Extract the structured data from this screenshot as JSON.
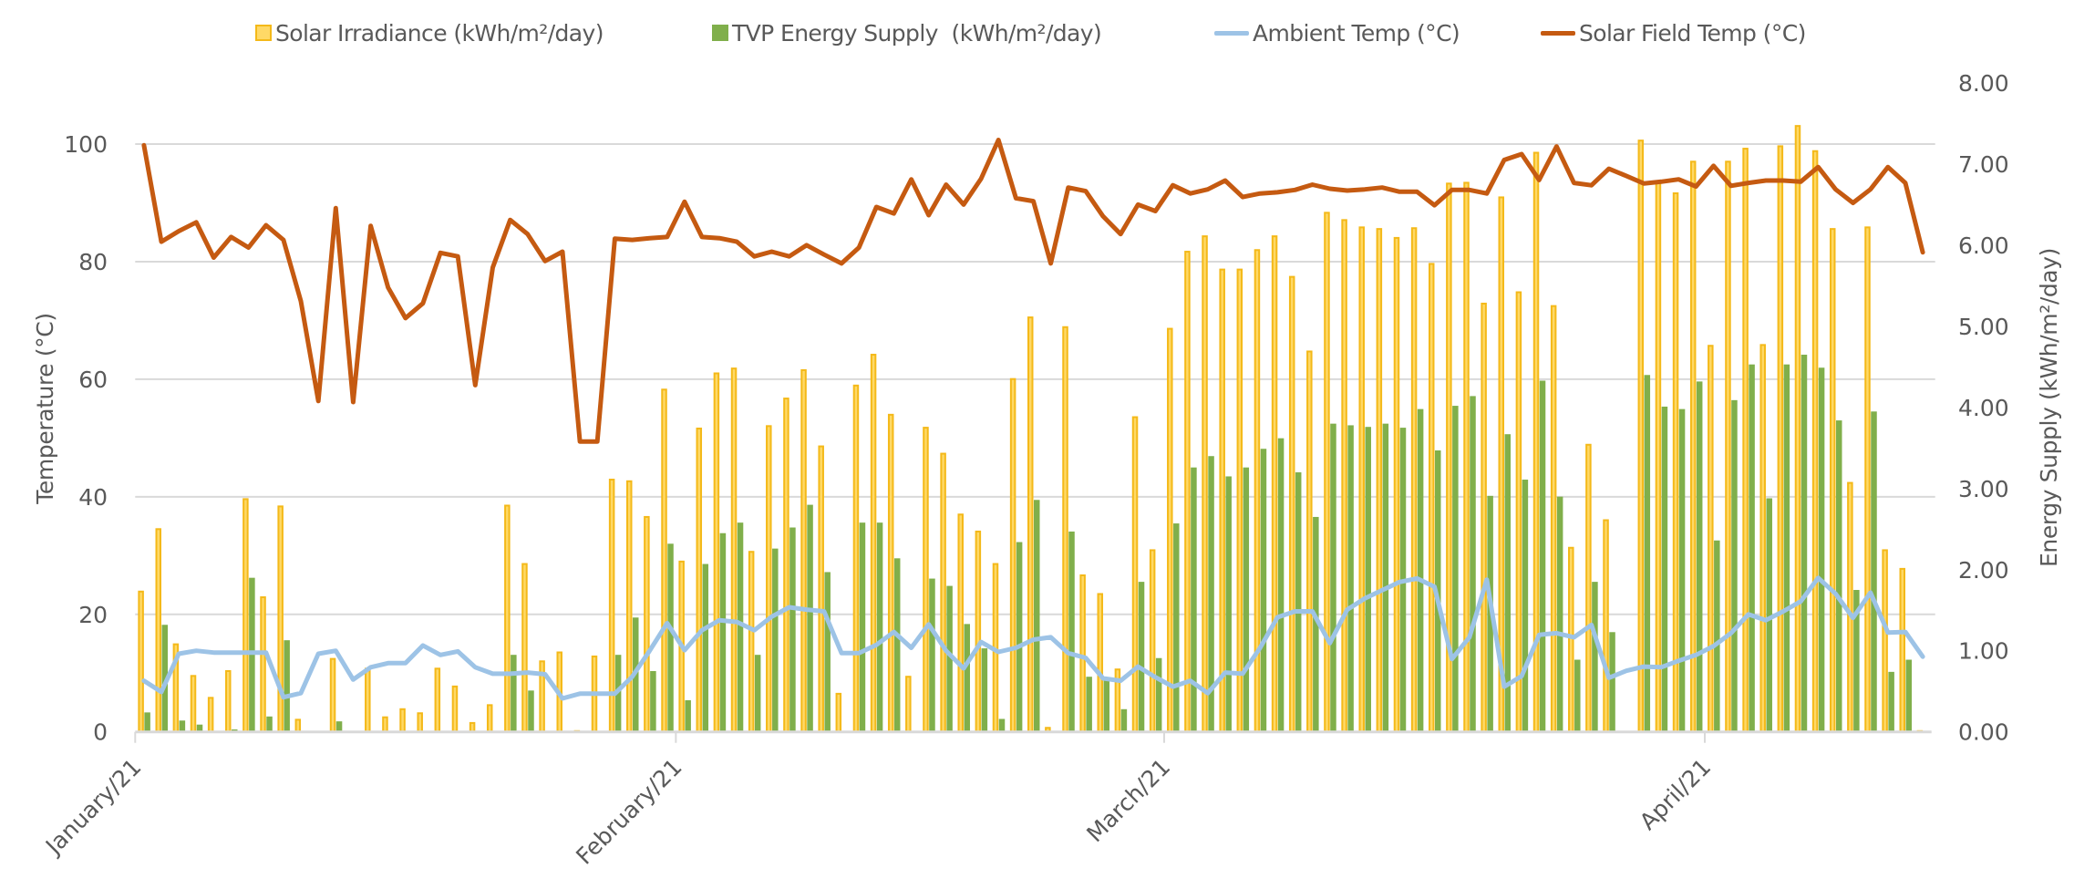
{
  "chart_data": {
    "type": "bar+line",
    "title": "",
    "x_type": "date",
    "start_date": "2021-01-01",
    "end_date": "2021-04-13",
    "x_tick_labels": [
      "January/21",
      "February/21",
      "March/21",
      "April/21"
    ],
    "x_tick_day_index": [
      0,
      31,
      59,
      90
    ],
    "xlabel": "",
    "ylabel_left": "Temperature (°C)",
    "ylabel_right": "Energy Supply (kWh/m²/day)",
    "y_left": {
      "range": [
        0,
        110.4
      ],
      "ticks": [
        0,
        20,
        40,
        60,
        80,
        100
      ],
      "tick_labels": [
        "0",
        "20",
        "40",
        "60",
        "80",
        "100"
      ],
      "gridlines": true
    },
    "y_right": {
      "range": [
        0,
        8
      ],
      "ticks": [
        0,
        1,
        2,
        3,
        4,
        5,
        6,
        7,
        8
      ],
      "tick_labels": [
        "0.00",
        "1.00",
        "2.00",
        "3.00",
        "4.00",
        "5.00",
        "6.00",
        "7.00",
        "8.00"
      ]
    },
    "legend_position": "top",
    "series": [
      {
        "name": "Solar Irradiance (kWh/m²/day)",
        "legend_label": "Solar Irradiance (kWh/m²/day)",
        "type": "bar",
        "axis": "right",
        "color": "#FFD966",
        "border_color": "#F4B919",
        "values": [
          1.73,
          2.5,
          1.08,
          0.69,
          0.42,
          0.75,
          2.87,
          1.66,
          2.78,
          0.15,
          0,
          0.9,
          0,
          0.78,
          0.18,
          0.28,
          0.23,
          0.78,
          0.56,
          0.11,
          0.33,
          2.79,
          2.07,
          0.87,
          0.98,
          0.01,
          0.93,
          3.11,
          3.09,
          2.65,
          4.22,
          2.1,
          3.74,
          4.42,
          4.48,
          2.22,
          3.77,
          4.11,
          4.46,
          3.52,
          0.47,
          4.27,
          4.65,
          3.91,
          0.68,
          3.75,
          3.43,
          2.68,
          2.47,
          2.07,
          4.35,
          5.11,
          0.05,
          4.99,
          1.93,
          1.7,
          0.77,
          3.88,
          2.24,
          4.97,
          5.92,
          6.11,
          5.7,
          5.7,
          5.94,
          6.11,
          5.61,
          4.69,
          6.4,
          6.31,
          6.22,
          6.2,
          6.09,
          6.21,
          5.77,
          6.76,
          6.77,
          5.28,
          6.59,
          5.42,
          7.14,
          5.25,
          2.27,
          3.54,
          2.61,
          0,
          7.29,
          6.77,
          6.64,
          7.03,
          4.76,
          7.03,
          7.19,
          4.77,
          7.22,
          7.47,
          7.16,
          6.2,
          3.07,
          6.22,
          2.24,
          2.01,
          0.01
        ]
      },
      {
        "name": "TVP Energy Supply (kWh/m²/day)",
        "legend_label": "TVP Energy Supply  (kWh/m²/day)",
        "type": "bar",
        "axis": "right",
        "color": "#80AF4B",
        "values": [
          0.24,
          1.32,
          0.14,
          0.09,
          0,
          0.03,
          1.9,
          0.19,
          1.13,
          0,
          0,
          0.13,
          0.01,
          0.01,
          0,
          0,
          0,
          0,
          0,
          0,
          0,
          0.95,
          0.51,
          0,
          0.01,
          0,
          0,
          0.95,
          1.41,
          0.75,
          2.32,
          0.39,
          2.07,
          2.45,
          2.58,
          0.95,
          2.26,
          2.52,
          2.8,
          1.97,
          0,
          2.58,
          2.58,
          2.14,
          0.01,
          1.89,
          1.8,
          1.33,
          1.03,
          0.16,
          2.34,
          2.86,
          0,
          2.47,
          0.68,
          0.67,
          0.28,
          1.85,
          0.91,
          2.57,
          3.26,
          3.4,
          3.15,
          3.26,
          3.49,
          3.62,
          3.2,
          2.65,
          3.8,
          3.78,
          3.76,
          3.8,
          3.75,
          3.98,
          3.47,
          4.02,
          4.14,
          2.91,
          3.67,
          3.11,
          4.33,
          2.9,
          0.89,
          1.85,
          1.23,
          0,
          4.4,
          4.01,
          3.98,
          4.32,
          2.36,
          4.09,
          4.53,
          2.88,
          4.53,
          4.65,
          4.49,
          3.84,
          1.75,
          3.95,
          0.74,
          0.89,
          0
        ]
      },
      {
        "name": "Ambient Temp (°C)",
        "legend_label": "Ambient Temp (°C)",
        "type": "line",
        "axis": "left",
        "color": "#9DC3E6",
        "values": [
          8.7,
          6.8,
          13.3,
          13.8,
          13.5,
          13.5,
          13.5,
          13.5,
          5.9,
          6.6,
          13.3,
          13.8,
          8.9,
          11.0,
          11.7,
          11.7,
          14.7,
          13.1,
          13.7,
          11.0,
          9.9,
          9.9,
          10.1,
          9.8,
          5.7,
          6.5,
          6.5,
          6.5,
          9.4,
          13.8,
          18.5,
          13.9,
          17.3,
          19.0,
          18.7,
          17.3,
          19.6,
          21.2,
          20.8,
          20.5,
          13.4,
          13.4,
          14.8,
          17.0,
          14.3,
          18.3,
          13.8,
          10.8,
          15.3,
          13.6,
          14.3,
          15.7,
          16.1,
          13.4,
          12.6,
          9.1,
          8.7,
          11.1,
          9.3,
          7.7,
          8.7,
          6.6,
          10.1,
          9.9,
          14.3,
          19.5,
          20.5,
          20.5,
          15.1,
          20.8,
          22.7,
          24.1,
          25.5,
          26.1,
          24.7,
          12.4,
          16.1,
          25.9,
          7.7,
          9.5,
          16.5,
          16.8,
          16.1,
          18.2,
          9.2,
          10.4,
          11.1,
          11.0,
          12.1,
          13.1,
          14.6,
          16.8,
          20.0,
          19.0,
          20.5,
          22.2,
          26.2,
          23.5,
          19.4,
          23.7,
          16.9,
          17.0,
          12.8
        ]
      },
      {
        "name": "Solar Field Temp (°C)",
        "legend_label": "Solar Field Temp (°C)",
        "type": "line",
        "axis": "left",
        "color": "#C55A11",
        "values": [
          99.8,
          83.4,
          85.2,
          86.7,
          80.7,
          84.2,
          82.4,
          86.2,
          83.7,
          73.3,
          56.3,
          89.1,
          56.1,
          86.1,
          75.6,
          70.4,
          72.9,
          81.5,
          80.9,
          59.0,
          79.0,
          87.1,
          84.7,
          80.1,
          81.7,
          49.4,
          49.4,
          83.9,
          83.7,
          84.0,
          84.2,
          90.2,
          84.2,
          84.0,
          83.4,
          80.9,
          81.7,
          80.9,
          82.8,
          81.2,
          79.7,
          82.4,
          89.3,
          88.2,
          94.0,
          87.9,
          93.1,
          89.7,
          94.1,
          100.7,
          90.8,
          90.3,
          79.7,
          92.6,
          92.0,
          87.7,
          84.7,
          89.7,
          88.6,
          93.0,
          91.6,
          92.3,
          93.8,
          91.0,
          91.6,
          91.8,
          92.2,
          93.1,
          92.4,
          92.1,
          92.3,
          92.6,
          91.9,
          91.9,
          89.6,
          92.2,
          92.2,
          91.6,
          97.3,
          98.3,
          93.9,
          99.6,
          93.4,
          93.0,
          95.8,
          94.6,
          93.3,
          93.6,
          94.0,
          92.8,
          96.3,
          92.9,
          93.4,
          93.8,
          93.8,
          93.6,
          96.1,
          92.3,
          90.0,
          92.3,
          96.1,
          93.4,
          81.6
        ]
      }
    ]
  }
}
